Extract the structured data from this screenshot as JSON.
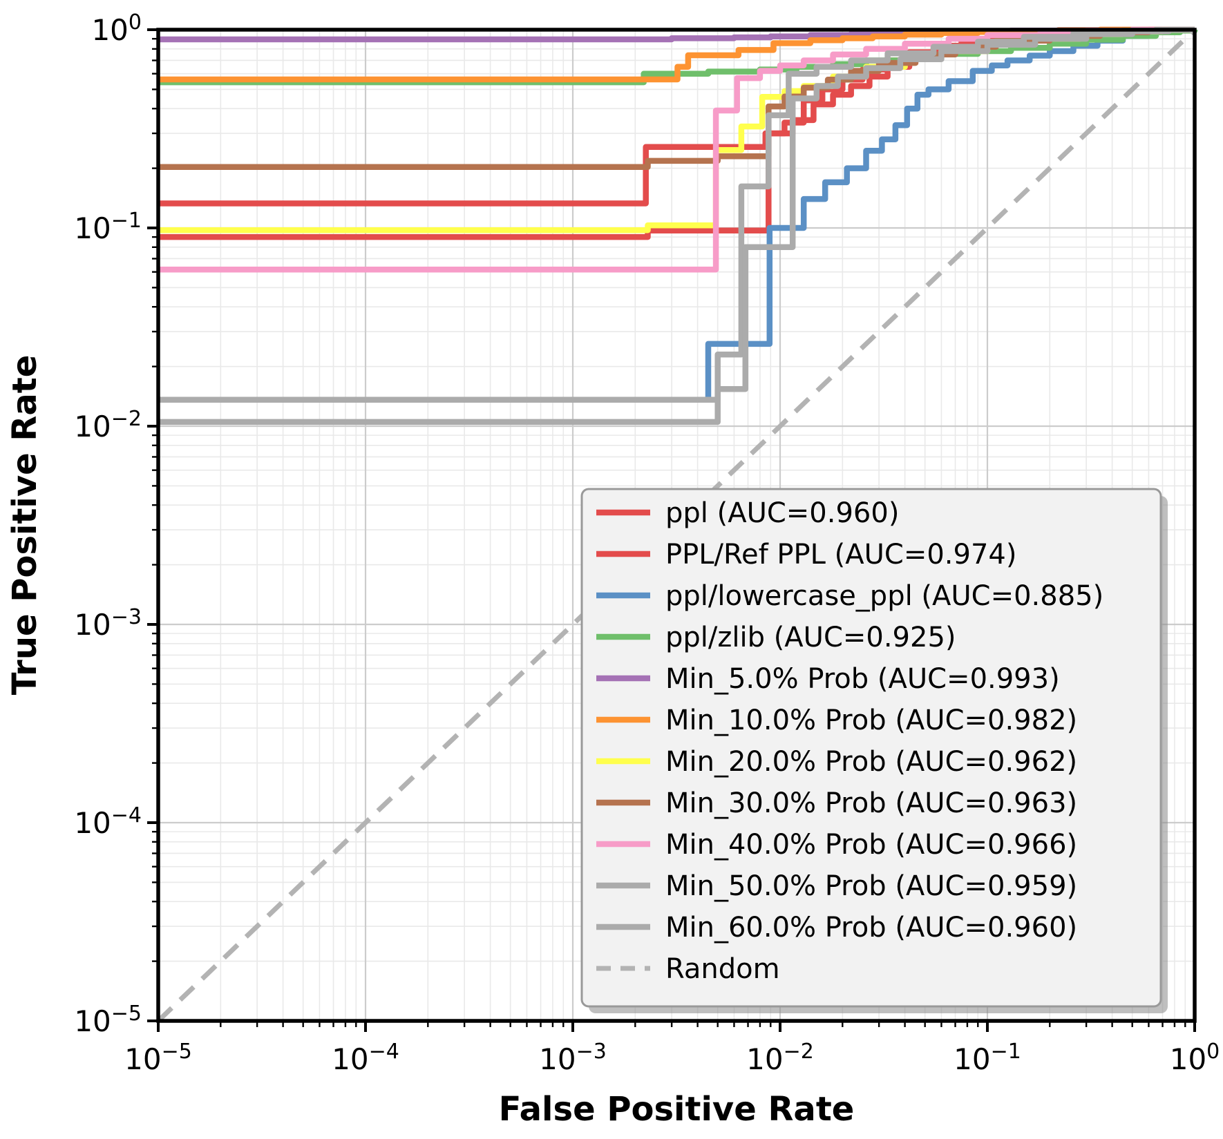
{
  "chart_data": {
    "type": "line",
    "subtype": "roc-curves-step",
    "title": "",
    "xlabel": "False Positive Rate",
    "ylabel": "True Positive Rate",
    "xscale": "log",
    "yscale": "log",
    "xlim": [
      1e-05,
      1
    ],
    "ylim": [
      1e-05,
      1
    ],
    "x_tick_exponents": [
      -5,
      -4,
      -3,
      -2,
      -1,
      0
    ],
    "y_tick_exponents": [
      0,
      -1,
      -2,
      -3,
      -4,
      -5
    ],
    "grid": "major+minor",
    "legend_position": "lower right",
    "colors": {
      "grid_major": "#cccccc",
      "grid_minor": "#e9e9e9",
      "spine": "#000000",
      "legend_bg": "#f2f2f2",
      "legend_border": "#999999",
      "legend_shadow": "#8a8a8a",
      "random_line": "#b3b3b3"
    },
    "series": [
      {
        "name": "ppl",
        "label": "ppl (AUC=0.960)",
        "auc": 0.96,
        "color": "#e34c4c",
        "style": "step",
        "points": [
          [
            1e-05,
            0.09
          ],
          [
            0.0023,
            0.097
          ],
          [
            0.0088,
            0.3
          ],
          [
            0.0115,
            0.35
          ],
          [
            0.0145,
            0.42
          ],
          [
            0.018,
            0.47
          ],
          [
            0.022,
            0.52
          ],
          [
            0.027,
            0.58
          ],
          [
            0.033,
            0.65
          ],
          [
            0.042,
            0.72
          ],
          [
            0.055,
            0.78
          ],
          [
            0.075,
            0.83
          ],
          [
            0.1,
            0.87
          ],
          [
            0.14,
            0.91
          ],
          [
            0.2,
            0.94
          ],
          [
            0.3,
            0.97
          ],
          [
            0.45,
            0.99
          ],
          [
            0.65,
            1.0
          ],
          [
            1,
            1
          ]
        ]
      },
      {
        "name": "ppl-ref-ppl",
        "label": "PPL/Ref PPL (AUC=0.974)",
        "auc": 0.974,
        "color": "#e34c4c",
        "style": "step",
        "points": [
          [
            1e-05,
            0.133
          ],
          [
            0.00225,
            0.256
          ],
          [
            0.0085,
            0.3
          ],
          [
            0.0105,
            0.34
          ],
          [
            0.013,
            0.44
          ],
          [
            0.016,
            0.5
          ],
          [
            0.02,
            0.56
          ],
          [
            0.025,
            0.63
          ],
          [
            0.032,
            0.7
          ],
          [
            0.042,
            0.77
          ],
          [
            0.055,
            0.83
          ],
          [
            0.075,
            0.87
          ],
          [
            0.1,
            0.9
          ],
          [
            0.15,
            0.94
          ],
          [
            0.22,
            0.97
          ],
          [
            0.35,
            0.99
          ],
          [
            0.55,
            1.0
          ],
          [
            1,
            1
          ]
        ]
      },
      {
        "name": "ppl-lowercase-ppl",
        "label": "ppl/lowercase_ppl (AUC=0.885)",
        "auc": 0.885,
        "color": "#5b90c5",
        "style": "step",
        "points": [
          [
            1e-05,
            0.0136
          ],
          [
            0.0045,
            0.026
          ],
          [
            0.0089,
            0.1
          ],
          [
            0.013,
            0.14
          ],
          [
            0.0165,
            0.17
          ],
          [
            0.021,
            0.2
          ],
          [
            0.026,
            0.245
          ],
          [
            0.031,
            0.28
          ],
          [
            0.036,
            0.33
          ],
          [
            0.041,
            0.4
          ],
          [
            0.046,
            0.47
          ],
          [
            0.052,
            0.5
          ],
          [
            0.065,
            0.55
          ],
          [
            0.085,
            0.62
          ],
          [
            0.105,
            0.66
          ],
          [
            0.125,
            0.7
          ],
          [
            0.16,
            0.74
          ],
          [
            0.2,
            0.78
          ],
          [
            0.26,
            0.83
          ],
          [
            0.34,
            0.88
          ],
          [
            0.45,
            0.93
          ],
          [
            0.6,
            0.97
          ],
          [
            0.8,
            0.99
          ],
          [
            1,
            1
          ]
        ]
      },
      {
        "name": "ppl-zlib",
        "label": "ppl/zlib (AUC=0.925)",
        "auc": 0.925,
        "color": "#6fbf6b",
        "style": "step",
        "points": [
          [
            1e-05,
            0.543
          ],
          [
            0.0022,
            0.6
          ],
          [
            0.0045,
            0.615
          ],
          [
            0.008,
            0.63
          ],
          [
            0.012,
            0.65
          ],
          [
            0.018,
            0.67
          ],
          [
            0.026,
            0.7
          ],
          [
            0.04,
            0.73
          ],
          [
            0.06,
            0.755
          ],
          [
            0.09,
            0.78
          ],
          [
            0.13,
            0.81
          ],
          [
            0.2,
            0.85
          ],
          [
            0.3,
            0.89
          ],
          [
            0.45,
            0.93
          ],
          [
            0.65,
            0.97
          ],
          [
            0.85,
            0.99
          ],
          [
            1,
            1
          ]
        ]
      },
      {
        "name": "min-5-prob",
        "label": "Min_5.0% Prob (AUC=0.993)",
        "auc": 0.993,
        "color": "#a572b5",
        "style": "step",
        "points": [
          [
            1e-05,
            0.894
          ],
          [
            0.003,
            0.905
          ],
          [
            0.006,
            0.915
          ],
          [
            0.009,
            0.925
          ],
          [
            0.014,
            0.94
          ],
          [
            0.022,
            0.952
          ],
          [
            0.035,
            0.963
          ],
          [
            0.055,
            0.973
          ],
          [
            0.085,
            0.982
          ],
          [
            0.13,
            0.99
          ],
          [
            0.22,
            0.996
          ],
          [
            0.35,
            1.0
          ],
          [
            1,
            1
          ]
        ]
      },
      {
        "name": "min-10-prob",
        "label": "Min_10.0% Prob (AUC=0.982)",
        "auc": 0.982,
        "color": "#fd9332",
        "style": "step",
        "points": [
          [
            1e-05,
            0.561
          ],
          [
            0.0032,
            0.65
          ],
          [
            0.0036,
            0.743
          ],
          [
            0.0063,
            0.79
          ],
          [
            0.0093,
            0.855
          ],
          [
            0.014,
            0.885
          ],
          [
            0.02,
            0.905
          ],
          [
            0.028,
            0.925
          ],
          [
            0.04,
            0.945
          ],
          [
            0.06,
            0.962
          ],
          [
            0.09,
            0.975
          ],
          [
            0.14,
            0.985
          ],
          [
            0.22,
            0.993
          ],
          [
            0.35,
            1.0
          ],
          [
            1,
            1
          ]
        ]
      },
      {
        "name": "min-20-prob",
        "label": "Min_20.0% Prob (AUC=0.962)",
        "auc": 0.962,
        "color": "#ffff4d",
        "style": "step",
        "points": [
          [
            1e-05,
            0.0975
          ],
          [
            0.0023,
            0.103
          ],
          [
            0.0049,
            0.247
          ],
          [
            0.0065,
            0.325
          ],
          [
            0.0082,
            0.458
          ],
          [
            0.0105,
            0.49
          ],
          [
            0.013,
            0.52
          ],
          [
            0.018,
            0.58
          ],
          [
            0.026,
            0.65
          ],
          [
            0.04,
            0.72
          ],
          [
            0.06,
            0.78
          ],
          [
            0.1,
            0.85
          ],
          [
            0.16,
            0.9
          ],
          [
            0.28,
            0.95
          ],
          [
            0.45,
            0.98
          ],
          [
            0.7,
            1.0
          ],
          [
            1,
            1
          ]
        ]
      },
      {
        "name": "min-30-prob",
        "label": "Min_30.0% Prob (AUC=0.963)",
        "auc": 0.963,
        "color": "#b5734f",
        "style": "step",
        "points": [
          [
            1e-05,
            0.203
          ],
          [
            0.0023,
            0.218
          ],
          [
            0.005,
            0.23
          ],
          [
            0.0088,
            0.41
          ],
          [
            0.0105,
            0.46
          ],
          [
            0.013,
            0.51
          ],
          [
            0.017,
            0.56
          ],
          [
            0.022,
            0.62
          ],
          [
            0.03,
            0.68
          ],
          [
            0.045,
            0.75
          ],
          [
            0.07,
            0.82
          ],
          [
            0.11,
            0.88
          ],
          [
            0.2,
            0.93
          ],
          [
            0.35,
            0.97
          ],
          [
            0.6,
            1.0
          ],
          [
            1,
            1
          ]
        ]
      },
      {
        "name": "min-40-prob",
        "label": "Min_40.0% Prob (AUC=0.966)",
        "auc": 0.966,
        "color": "#f79cc8",
        "style": "step",
        "points": [
          [
            1e-05,
            0.0617
          ],
          [
            0.0049,
            0.391
          ],
          [
            0.0062,
            0.57
          ],
          [
            0.008,
            0.62
          ],
          [
            0.01,
            0.66
          ],
          [
            0.013,
            0.7
          ],
          [
            0.018,
            0.75
          ],
          [
            0.026,
            0.8
          ],
          [
            0.04,
            0.85
          ],
          [
            0.065,
            0.9
          ],
          [
            0.1,
            0.94
          ],
          [
            0.18,
            0.97
          ],
          [
            0.3,
            0.99
          ],
          [
            0.5,
            1.0
          ],
          [
            1,
            1
          ]
        ]
      },
      {
        "name": "min-50-prob",
        "label": "Min_50.0% Prob (AUC=0.959)",
        "auc": 0.959,
        "color": "#ababab",
        "style": "step",
        "points": [
          [
            1e-05,
            0.0136
          ],
          [
            0.005,
            0.023
          ],
          [
            0.0065,
            0.162
          ],
          [
            0.0088,
            0.37
          ],
          [
            0.011,
            0.6
          ],
          [
            0.015,
            0.65
          ],
          [
            0.022,
            0.7
          ],
          [
            0.033,
            0.76
          ],
          [
            0.055,
            0.82
          ],
          [
            0.09,
            0.87
          ],
          [
            0.15,
            0.92
          ],
          [
            0.26,
            0.96
          ],
          [
            0.45,
            0.99
          ],
          [
            0.65,
            1.0
          ],
          [
            1,
            1
          ]
        ]
      },
      {
        "name": "min-60-prob",
        "label": "Min_60.0% Prob (AUC=0.960)",
        "auc": 0.96,
        "color": "#ababab",
        "style": "step",
        "points": [
          [
            1e-05,
            0.0105
          ],
          [
            0.005,
            0.0154
          ],
          [
            0.0068,
            0.08
          ],
          [
            0.0115,
            0.45
          ],
          [
            0.015,
            0.52
          ],
          [
            0.019,
            0.58
          ],
          [
            0.026,
            0.64
          ],
          [
            0.038,
            0.71
          ],
          [
            0.06,
            0.78
          ],
          [
            0.1,
            0.84
          ],
          [
            0.17,
            0.9
          ],
          [
            0.3,
            0.95
          ],
          [
            0.5,
            0.98
          ],
          [
            0.75,
            1.0
          ],
          [
            1,
            1
          ]
        ]
      },
      {
        "name": "random",
        "label": "Random",
        "color": "#b3b3b3",
        "style": "dash",
        "points": [
          [
            1e-05,
            1e-05
          ],
          [
            1,
            1
          ]
        ]
      }
    ]
  }
}
